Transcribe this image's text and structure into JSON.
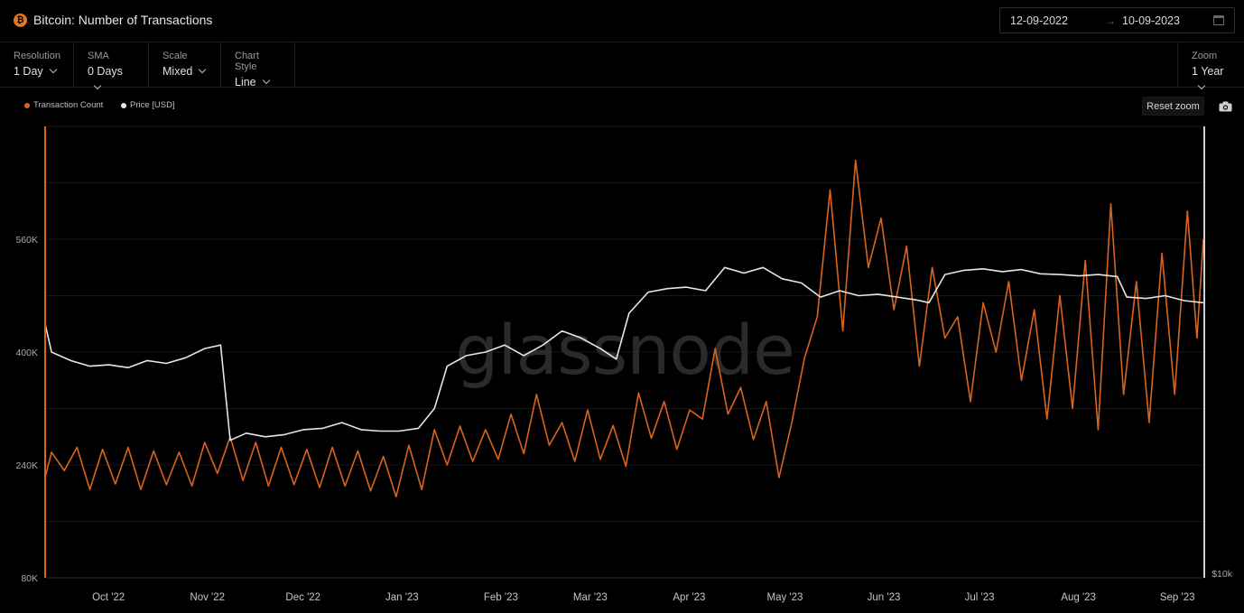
{
  "header": {
    "title": "Bitcoin: Number of Transactions",
    "icon": "bitcoin-icon",
    "date_start": "12-09-2022",
    "date_arrow": "→",
    "date_end": "10-09-2023"
  },
  "toolbar": {
    "resolution": {
      "label": "Resolution",
      "value": "1 Day"
    },
    "sma": {
      "label": "SMA",
      "value": "0 Days"
    },
    "scale": {
      "label": "Scale",
      "value": "Mixed"
    },
    "chart_style": {
      "label": "Chart Style",
      "value": "Line"
    },
    "zoom": {
      "label": "Zoom",
      "value": "1 Year"
    }
  },
  "reset_zoom": "Reset zoom",
  "watermark": "glassnode",
  "colors": {
    "transactions": "#d9641e",
    "price": "#e6e6e6",
    "background": "#000000",
    "grid": "#161616"
  },
  "chart_data": {
    "type": "line",
    "title": "Bitcoin: Number of Transactions",
    "x_range": [
      "2022-09-12",
      "2023-09-10"
    ],
    "x_ticks": [
      "Oct '22",
      "Nov '22",
      "Dec '22",
      "Jan '23",
      "Feb '23",
      "Mar '23",
      "Apr '23",
      "May '23",
      "Jun '23",
      "Jul '23",
      "Aug '23",
      "Sep '23"
    ],
    "y_left": {
      "ticks": [
        "80K",
        "240K",
        "400K",
        "560K"
      ],
      "range": [
        80000,
        720000
      ]
    },
    "y_right": {
      "ticks": [
        "$10k"
      ],
      "min": 10000
    },
    "grid": true,
    "legend_position": "top-left",
    "series": [
      {
        "name": "Transaction Count",
        "axis": "left",
        "color": "#d9641e",
        "points": [
          [
            "2022-09-12",
            222000
          ],
          [
            "2022-09-14",
            258000
          ],
          [
            "2022-09-18",
            232000
          ],
          [
            "2022-09-22",
            265000
          ],
          [
            "2022-09-26",
            205000
          ],
          [
            "2022-09-30",
            262000
          ],
          [
            "2022-10-04",
            213000
          ],
          [
            "2022-10-08",
            265000
          ],
          [
            "2022-10-12",
            205000
          ],
          [
            "2022-10-16",
            260000
          ],
          [
            "2022-10-20",
            212000
          ],
          [
            "2022-10-24",
            258000
          ],
          [
            "2022-10-28",
            210000
          ],
          [
            "2022-11-01",
            272000
          ],
          [
            "2022-11-05",
            228000
          ],
          [
            "2022-11-09",
            280000
          ],
          [
            "2022-11-13",
            218000
          ],
          [
            "2022-11-17",
            272000
          ],
          [
            "2022-11-21",
            210000
          ],
          [
            "2022-11-25",
            265000
          ],
          [
            "2022-11-29",
            212000
          ],
          [
            "2022-12-03",
            262000
          ],
          [
            "2022-12-07",
            208000
          ],
          [
            "2022-12-11",
            265000
          ],
          [
            "2022-12-15",
            210000
          ],
          [
            "2022-12-19",
            260000
          ],
          [
            "2022-12-23",
            203000
          ],
          [
            "2022-12-27",
            252000
          ],
          [
            "2022-12-31",
            195000
          ],
          [
            "2023-01-04",
            268000
          ],
          [
            "2023-01-08",
            205000
          ],
          [
            "2023-01-12",
            290000
          ],
          [
            "2023-01-16",
            240000
          ],
          [
            "2023-01-20",
            295000
          ],
          [
            "2023-01-24",
            245000
          ],
          [
            "2023-01-28",
            290000
          ],
          [
            "2023-02-01",
            248000
          ],
          [
            "2023-02-05",
            312000
          ],
          [
            "2023-02-09",
            256000
          ],
          [
            "2023-02-13",
            340000
          ],
          [
            "2023-02-17",
            268000
          ],
          [
            "2023-02-21",
            300000
          ],
          [
            "2023-02-25",
            245000
          ],
          [
            "2023-03-01",
            318000
          ],
          [
            "2023-03-05",
            248000
          ],
          [
            "2023-03-09",
            296000
          ],
          [
            "2023-03-13",
            238000
          ],
          [
            "2023-03-17",
            342000
          ],
          [
            "2023-03-21",
            278000
          ],
          [
            "2023-03-25",
            330000
          ],
          [
            "2023-03-29",
            262000
          ],
          [
            "2023-04-02",
            318000
          ],
          [
            "2023-04-06",
            305000
          ],
          [
            "2023-04-10",
            405000
          ],
          [
            "2023-04-14",
            312000
          ],
          [
            "2023-04-18",
            350000
          ],
          [
            "2023-04-22",
            276000
          ],
          [
            "2023-04-26",
            330000
          ],
          [
            "2023-04-30",
            222000
          ],
          [
            "2023-05-04",
            300000
          ],
          [
            "2023-05-08",
            392000
          ],
          [
            "2023-05-12",
            450000
          ],
          [
            "2023-05-16",
            630000
          ],
          [
            "2023-05-20",
            430000
          ],
          [
            "2023-05-24",
            672000
          ],
          [
            "2023-05-28",
            520000
          ],
          [
            "2023-06-01",
            590000
          ],
          [
            "2023-06-05",
            460000
          ],
          [
            "2023-06-09",
            550000
          ],
          [
            "2023-06-13",
            380000
          ],
          [
            "2023-06-17",
            520000
          ],
          [
            "2023-06-21",
            420000
          ],
          [
            "2023-06-25",
            450000
          ],
          [
            "2023-06-29",
            330000
          ],
          [
            "2023-07-03",
            470000
          ],
          [
            "2023-07-07",
            400000
          ],
          [
            "2023-07-11",
            500000
          ],
          [
            "2023-07-15",
            360000
          ],
          [
            "2023-07-19",
            460000
          ],
          [
            "2023-07-23",
            305000
          ],
          [
            "2023-07-27",
            480000
          ],
          [
            "2023-07-31",
            320000
          ],
          [
            "2023-08-04",
            530000
          ],
          [
            "2023-08-08",
            290000
          ],
          [
            "2023-08-12",
            610000
          ],
          [
            "2023-08-16",
            340000
          ],
          [
            "2023-08-20",
            500000
          ],
          [
            "2023-08-24",
            300000
          ],
          [
            "2023-08-28",
            540000
          ],
          [
            "2023-09-01",
            340000
          ],
          [
            "2023-09-05",
            600000
          ],
          [
            "2023-09-08",
            420000
          ],
          [
            "2023-09-10",
            560000
          ]
        ]
      },
      {
        "name": "Price [USD]",
        "axis": "right",
        "color": "#e6e6e6",
        "points": [
          [
            "2022-09-12",
            440000
          ],
          [
            "2022-09-14",
            400000
          ],
          [
            "2022-09-20",
            388000
          ],
          [
            "2022-09-26",
            380000
          ],
          [
            "2022-10-02",
            382000
          ],
          [
            "2022-10-08",
            378000
          ],
          [
            "2022-10-14",
            388000
          ],
          [
            "2022-10-20",
            384000
          ],
          [
            "2022-10-26",
            392000
          ],
          [
            "2022-11-01",
            405000
          ],
          [
            "2022-11-06",
            410000
          ],
          [
            "2022-11-09",
            275000
          ],
          [
            "2022-11-14",
            285000
          ],
          [
            "2022-11-20",
            280000
          ],
          [
            "2022-11-26",
            283000
          ],
          [
            "2022-12-02",
            290000
          ],
          [
            "2022-12-08",
            292000
          ],
          [
            "2022-12-14",
            300000
          ],
          [
            "2022-12-20",
            290000
          ],
          [
            "2022-12-26",
            288000
          ],
          [
            "2023-01-01",
            288000
          ],
          [
            "2023-01-07",
            292000
          ],
          [
            "2023-01-12",
            320000
          ],
          [
            "2023-01-16",
            380000
          ],
          [
            "2023-01-22",
            395000
          ],
          [
            "2023-01-28",
            400000
          ],
          [
            "2023-02-03",
            410000
          ],
          [
            "2023-02-09",
            395000
          ],
          [
            "2023-02-15",
            410000
          ],
          [
            "2023-02-21",
            430000
          ],
          [
            "2023-02-27",
            420000
          ],
          [
            "2023-03-05",
            405000
          ],
          [
            "2023-03-10",
            390000
          ],
          [
            "2023-03-14",
            455000
          ],
          [
            "2023-03-20",
            485000
          ],
          [
            "2023-03-26",
            490000
          ],
          [
            "2023-04-01",
            492000
          ],
          [
            "2023-04-07",
            487000
          ],
          [
            "2023-04-13",
            520000
          ],
          [
            "2023-04-19",
            512000
          ],
          [
            "2023-04-25",
            520000
          ],
          [
            "2023-05-01",
            504000
          ],
          [
            "2023-05-07",
            498000
          ],
          [
            "2023-05-13",
            478000
          ],
          [
            "2023-05-19",
            487000
          ],
          [
            "2023-05-25",
            480000
          ],
          [
            "2023-05-31",
            482000
          ],
          [
            "2023-06-06",
            478000
          ],
          [
            "2023-06-12",
            474000
          ],
          [
            "2023-06-16",
            470000
          ],
          [
            "2023-06-21",
            510000
          ],
          [
            "2023-06-27",
            516000
          ],
          [
            "2023-07-03",
            518000
          ],
          [
            "2023-07-09",
            514000
          ],
          [
            "2023-07-15",
            517000
          ],
          [
            "2023-07-21",
            511000
          ],
          [
            "2023-07-27",
            510000
          ],
          [
            "2023-08-02",
            508000
          ],
          [
            "2023-08-08",
            510000
          ],
          [
            "2023-08-14",
            507000
          ],
          [
            "2023-08-17",
            478000
          ],
          [
            "2023-08-23",
            476000
          ],
          [
            "2023-08-29",
            480000
          ],
          [
            "2023-09-04",
            473000
          ],
          [
            "2023-09-10",
            470000
          ]
        ]
      }
    ]
  }
}
